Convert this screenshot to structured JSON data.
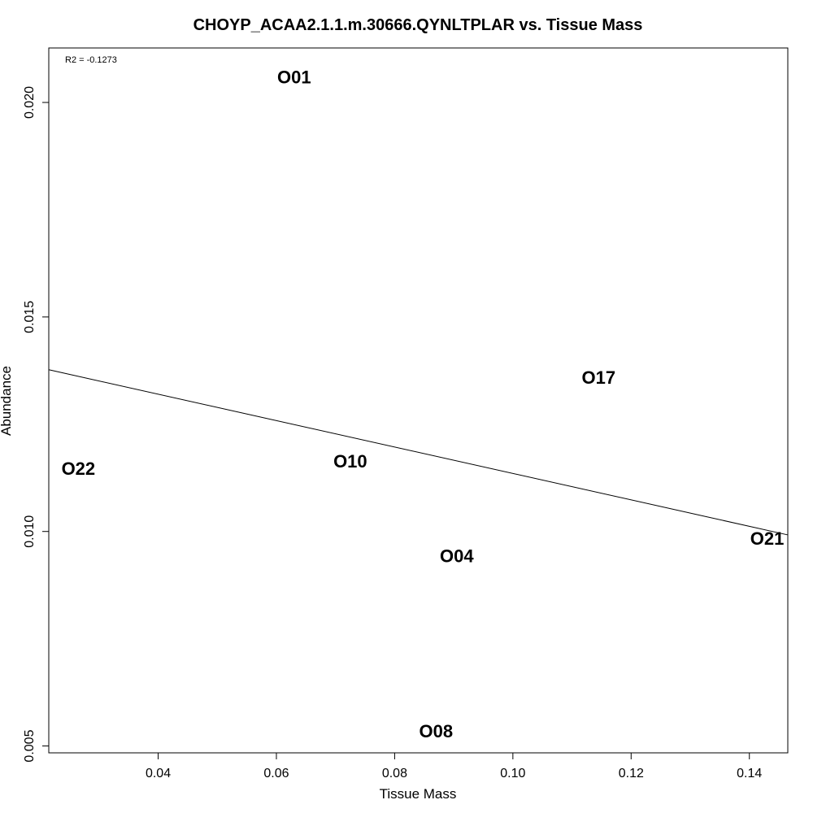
{
  "chart_data": {
    "type": "scatter",
    "title": "CHOYP_ACAA2.1.1.m.30666.QYNLTPLAR vs. Tissue Mass",
    "xlabel": "Tissue Mass",
    "ylabel": "Abundance",
    "xlim": [
      0.0215,
      0.1465
    ],
    "ylim": [
      0.00484,
      0.02127
    ],
    "x_ticks": [
      0.04,
      0.06,
      0.08,
      0.1,
      0.12,
      0.14
    ],
    "x_tick_labels": [
      "0.04",
      "0.06",
      "0.08",
      "0.10",
      "0.12",
      "0.14"
    ],
    "y_ticks": [
      0.005,
      0.01,
      0.015,
      0.02
    ],
    "y_tick_labels": [
      "0.005",
      "0.010",
      "0.015",
      "0.020"
    ],
    "grid": false,
    "annotation": "R2 = -0.1273",
    "points": [
      {
        "label": "O01",
        "x": 0.063,
        "y": 0.02059
      },
      {
        "label": "O17",
        "x": 0.1145,
        "y": 0.01359
      },
      {
        "label": "O22",
        "x": 0.0265,
        "y": 0.01146
      },
      {
        "label": "O10",
        "x": 0.0725,
        "y": 0.01163
      },
      {
        "label": "O21",
        "x": 0.143,
        "y": 0.00983
      },
      {
        "label": "O04",
        "x": 0.0905,
        "y": 0.00943
      },
      {
        "label": "O08",
        "x": 0.087,
        "y": 0.00534
      }
    ],
    "trendline": {
      "x": [
        0.0215,
        0.1465
      ],
      "y": [
        0.01377,
        0.00992
      ]
    },
    "colors": {
      "points": "#000000",
      "line": "#000000",
      "frame": "#000000"
    }
  }
}
